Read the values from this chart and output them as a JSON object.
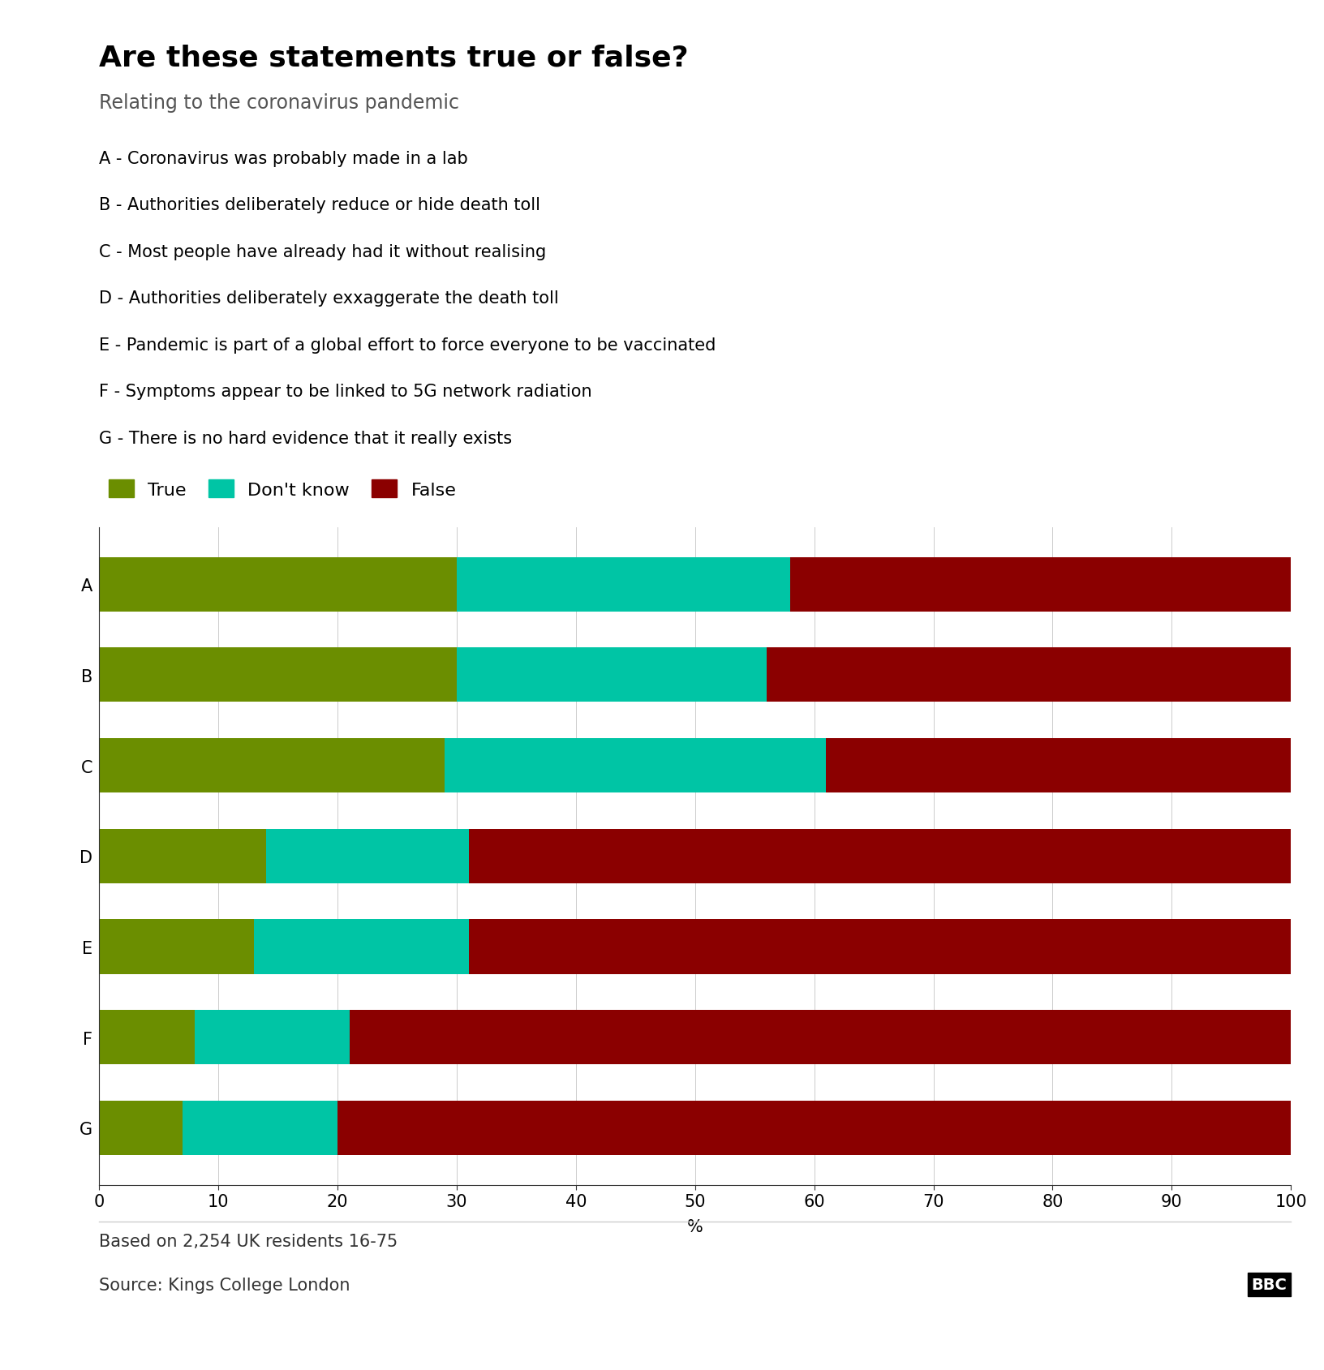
{
  "title": "Are these statements true or false?",
  "subtitle": "Relating to the coronavirus pandemic",
  "categories": [
    "A",
    "B",
    "C",
    "D",
    "E",
    "F",
    "G"
  ],
  "labels": [
    "A - Coronavirus was probably made in a lab",
    "B - Authorities deliberately reduce or hide death toll",
    "C - Most people have already had it without realising",
    "D - Authorities deliberately exxaggerate the death toll",
    "E - Pandemic is part of a global effort to force everyone to be vaccinated",
    "F - Symptoms appear to be linked to 5G network radiation",
    "G - There is no hard evidence that it really exists"
  ],
  "true_values": [
    30,
    30,
    29,
    14,
    13,
    8,
    7
  ],
  "dontknow_values": [
    28,
    26,
    32,
    17,
    18,
    13,
    13
  ],
  "false_values": [
    42,
    44,
    39,
    69,
    69,
    79,
    80
  ],
  "true_color": "#6B8E00",
  "dontknow_color": "#00C5A5",
  "false_color": "#8B0000",
  "xlabel": "%",
  "xlim": [
    0,
    100
  ],
  "xticks": [
    0,
    10,
    20,
    30,
    40,
    50,
    60,
    70,
    80,
    90,
    100
  ],
  "footnote1": "Based on 2,254 UK residents 16-75",
  "footnote2": "Source: Kings College London",
  "bbc_label": "BBC",
  "background_color": "#ffffff",
  "title_fontsize": 26,
  "subtitle_fontsize": 17,
  "label_fontsize": 15,
  "legend_fontsize": 16,
  "tick_fontsize": 15,
  "footnote_fontsize": 15,
  "bar_height": 0.6
}
